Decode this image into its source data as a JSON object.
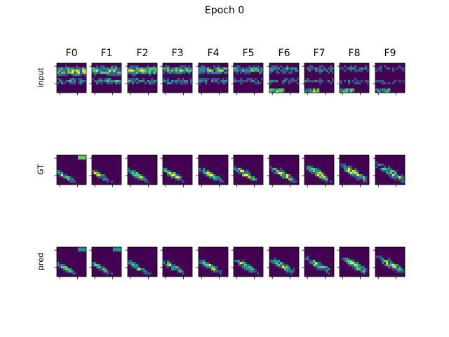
{
  "chart_data": {
    "type": "heatmap",
    "title": "Epoch 0",
    "columns": [
      "F0",
      "F1",
      "F2",
      "F3",
      "F4",
      "F5",
      "F6",
      "F7",
      "F8",
      "F9"
    ],
    "rows": [
      "input",
      "GT",
      "pred"
    ],
    "colormap": "viridis",
    "grid": false,
    "colors": {
      "background": "#440154",
      "low": "#3b528b",
      "mid": "#21918c",
      "high": "#5ec962",
      "peak": "#fde725"
    }
  }
}
